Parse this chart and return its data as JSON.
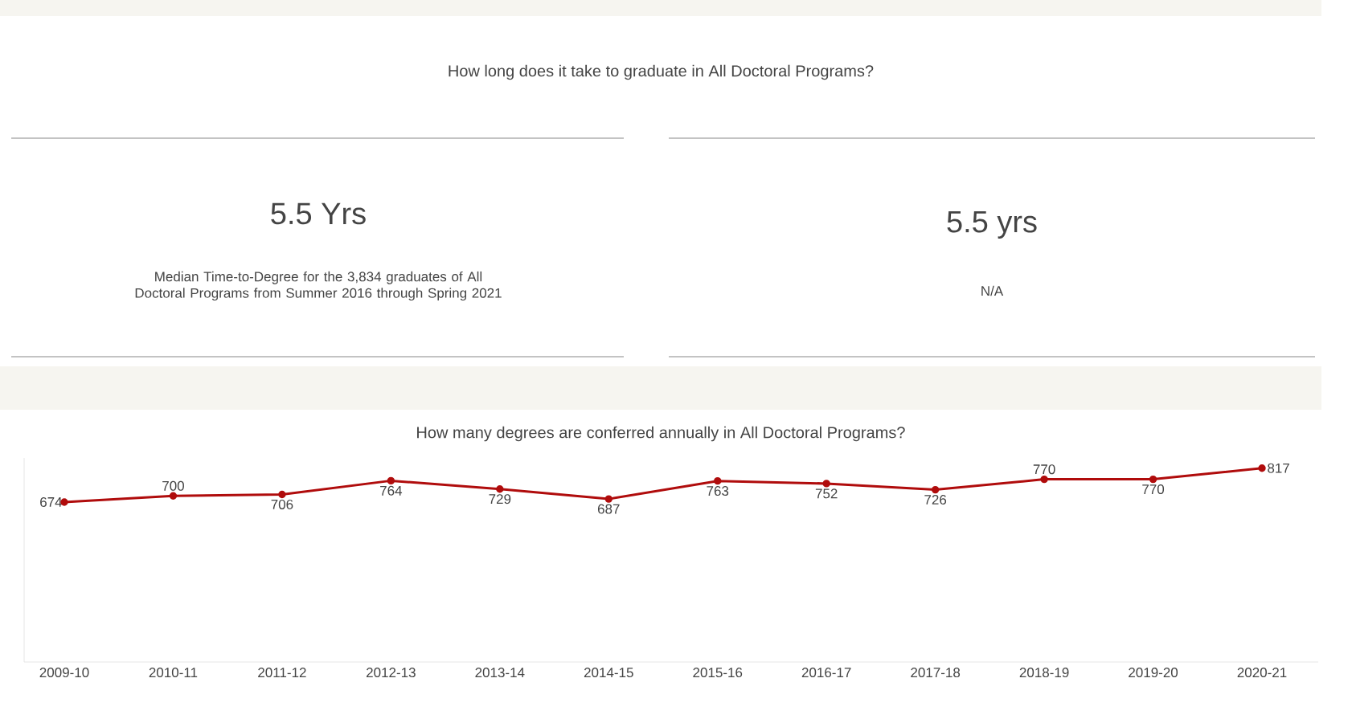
{
  "chart_data": [
    {
      "type": "other",
      "title": "How long does it take to graduate in All Doctoral Programs?",
      "annotations": [
        "5.5 Yrs",
        "Median Time-to-Degree for the 3,834 graduates of All Doctoral Programs from Summer 2016 through Spring 2021",
        "5.5 yrs",
        "N/A"
      ]
    },
    {
      "type": "line",
      "title": "How many degrees are conferred annually in All Doctoral Programs?",
      "categories": [
        "2009-10",
        "2010-11",
        "2011-12",
        "2012-13",
        "2013-14",
        "2014-15",
        "2015-16",
        "2016-17",
        "2017-18",
        "2018-19",
        "2019-20",
        "2020-21"
      ],
      "values": [
        674,
        700,
        706,
        764,
        729,
        687,
        763,
        752,
        726,
        770,
        770,
        817
      ],
      "color": "#b00c0c",
      "ylim": [
        0,
        860
      ],
      "tick_labels": "x",
      "data_labels": true,
      "marker": "circle",
      "line_style": "solid"
    }
  ]
}
